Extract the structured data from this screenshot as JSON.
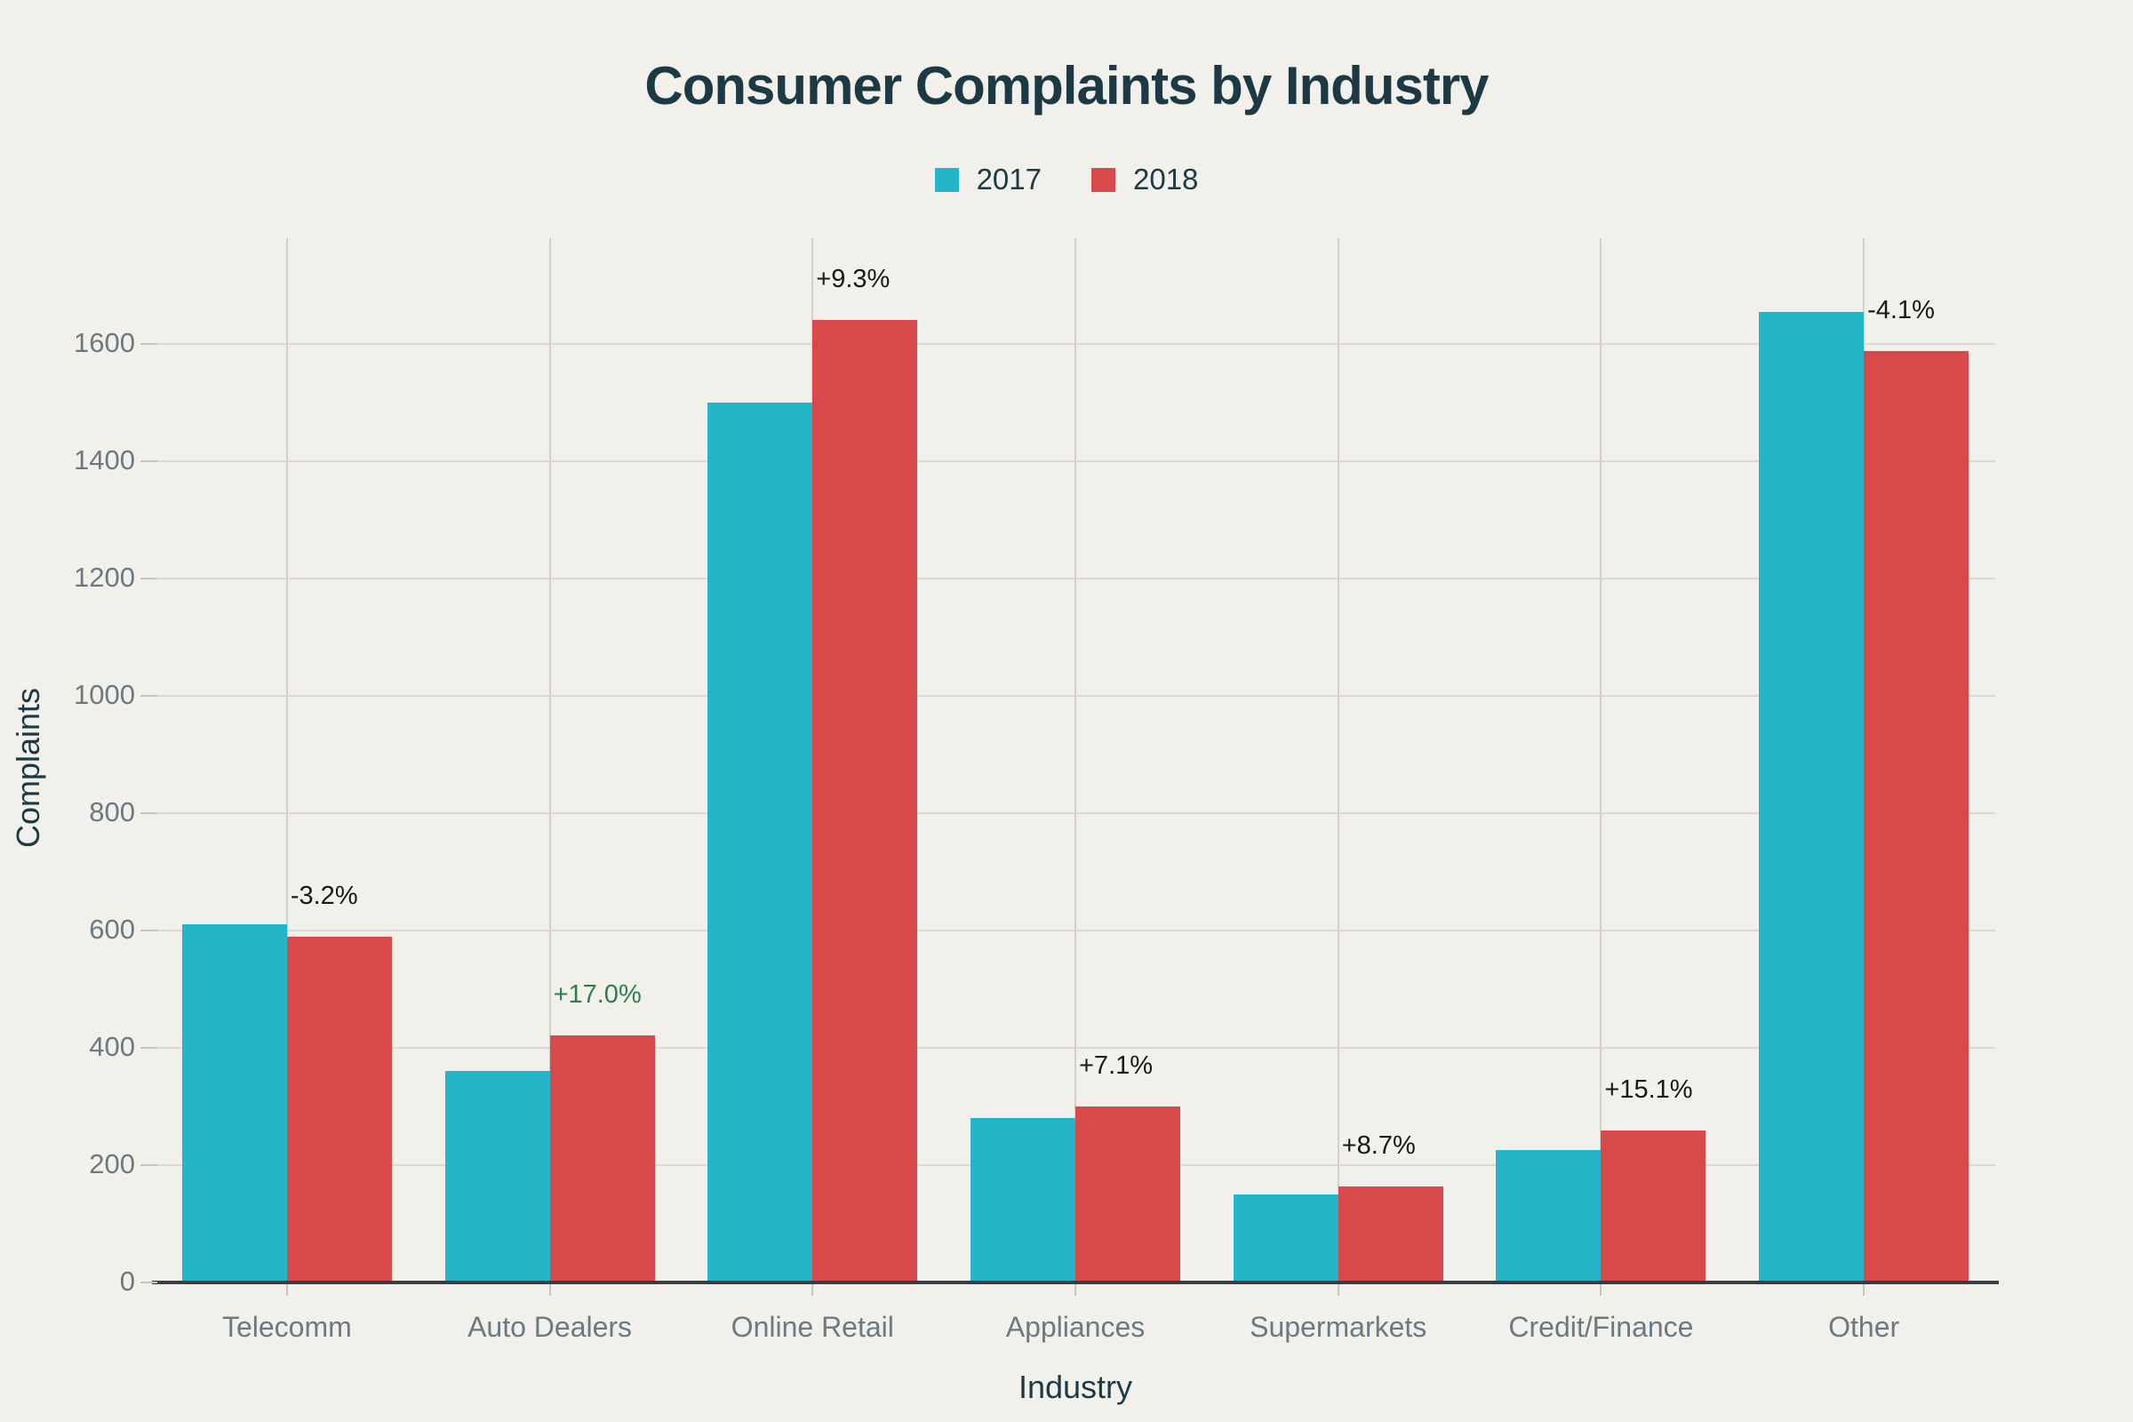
{
  "chart_data": {
    "type": "bar",
    "title": "Consumer Complaints by Industry",
    "xlabel": "Industry",
    "ylabel": "Complaints",
    "categories": [
      "Telecomm",
      "Auto Dealers",
      "Online Retail",
      "Appliances",
      "Supermarkets",
      "Credit/Finance",
      "Other"
    ],
    "series": [
      {
        "name": "2017",
        "color": "#25b5c8",
        "values": [
          610,
          360,
          1500,
          280,
          150,
          225,
          1655
        ]
      },
      {
        "name": "2018",
        "color": "#d9494b",
        "values": [
          590,
          421,
          1640,
          300,
          163,
          259,
          1587
        ]
      }
    ],
    "change_labels": [
      {
        "text": "-3.2%",
        "color": "#17191b"
      },
      {
        "text": "+17.0%",
        "color": "#2e7d4f"
      },
      {
        "text": "+9.3%",
        "color": "#17191b"
      },
      {
        "text": "+7.1%",
        "color": "#17191b"
      },
      {
        "text": "+8.7%",
        "color": "#17191b"
      },
      {
        "text": "+15.1%",
        "color": "#17191b"
      },
      {
        "text": "-4.1%",
        "color": "#17191b"
      }
    ],
    "y_ticks": [
      0,
      200,
      400,
      600,
      800,
      1000,
      1200,
      1400,
      1600
    ],
    "ylim": [
      0,
      1780
    ],
    "grid": true,
    "legend_position": "top-center",
    "colors": {
      "background": "#f1f0ea",
      "horizontal_grid": "#dcdad3",
      "vertical_grid": "#d2d0c9",
      "axis_line": "#393d42",
      "tick_label": "#6b7a82",
      "axis_title": "#1c3944",
      "title": "#1c3944"
    }
  }
}
